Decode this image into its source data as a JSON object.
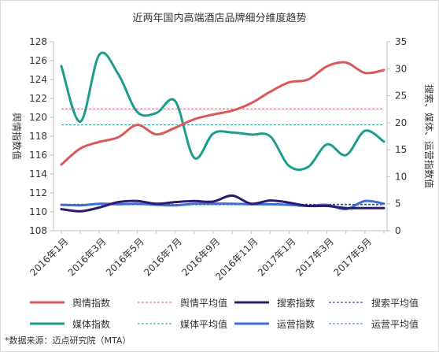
{
  "chart_data": {
    "type": "line",
    "title": "近两年国内高端酒店品牌细分维度趋势",
    "ylabel": "舆情指数值",
    "y2label": "搜索、媒体、运营指数值",
    "ylim": [
      108,
      128
    ],
    "yticks": [
      108,
      110,
      112,
      114,
      116,
      118,
      120,
      122,
      124,
      126,
      128
    ],
    "y2lim": [
      0,
      35
    ],
    "y2ticks": [
      0,
      5,
      10,
      15,
      20,
      25,
      30,
      35
    ],
    "grid": false,
    "legend_position": "bottom",
    "xlabels": [
      "2016年1月",
      "2016年3月",
      "2016年5月",
      "2016年7月",
      "2016年9月",
      "2016年11月",
      "2017年1月",
      "2017年3月",
      "2017年5月"
    ],
    "x": [
      "2016年1月",
      "2016年2月",
      "2016年3月",
      "2016年4月",
      "2016年5月",
      "2016年6月",
      "2016年7月",
      "2016年8月",
      "2016年9月",
      "2016年10月",
      "2016年11月",
      "2016年12月",
      "2017年1月",
      "2017年2月",
      "2017年3月",
      "2017年4月",
      "2017年5月",
      "2017年6月"
    ],
    "series": [
      {
        "name": "舆情指数",
        "axis": "left",
        "style": "solid",
        "color": "#D9595B",
        "values": [
          115.0,
          116.7,
          117.4,
          117.9,
          119.2,
          118.2,
          118.9,
          119.8,
          120.3,
          120.7,
          121.5,
          122.7,
          123.7,
          124.0,
          125.4,
          125.8,
          124.7,
          125.0
        ]
      },
      {
        "name": "舆情平均值",
        "axis": "left",
        "style": "dashed",
        "color": "#D9595B",
        "values": [
          120.9,
          120.9,
          120.9,
          120.9,
          120.9,
          120.9,
          120.9,
          120.9,
          120.9,
          120.9,
          120.9,
          120.9,
          120.9,
          120.9,
          120.9,
          120.9,
          120.9,
          120.9
        ]
      },
      {
        "name": "搜索指数",
        "axis": "right",
        "style": "solid",
        "color": "#2E1A6E",
        "values": [
          4.0,
          3.6,
          4.3,
          5.3,
          5.5,
          5.0,
          5.3,
          5.5,
          5.4,
          6.5,
          5.0,
          5.6,
          5.2,
          4.6,
          4.6,
          4.2,
          4.2,
          4.2
        ]
      },
      {
        "name": "搜索平均值",
        "axis": "right",
        "style": "dashed",
        "color": "#2E1A6E",
        "values": [
          4.9,
          4.9,
          4.9,
          4.9,
          4.9,
          4.9,
          4.9,
          4.9,
          4.9,
          4.9,
          4.9,
          4.9,
          4.9,
          4.9,
          4.9,
          4.9,
          4.9,
          4.9
        ]
      },
      {
        "name": "媒体指数",
        "axis": "right",
        "style": "solid",
        "color": "#1D9C8E",
        "values": [
          30.5,
          20.2,
          32.6,
          29.0,
          22.0,
          21.8,
          24.0,
          13.5,
          18.0,
          18.2,
          17.8,
          17.5,
          12.0,
          11.8,
          16.0,
          14.0,
          18.5,
          16.5
        ]
      },
      {
        "name": "媒体平均值",
        "axis": "right",
        "style": "dashed",
        "color": "#1D9C8E",
        "values": [
          19.6,
          19.6,
          19.6,
          19.6,
          19.6,
          19.6,
          19.6,
          19.6,
          19.6,
          19.6,
          19.6,
          19.6,
          19.6,
          19.6,
          19.6,
          19.6,
          19.6,
          19.6
        ]
      },
      {
        "name": "运营指数",
        "axis": "right",
        "style": "solid",
        "color": "#3C6FD1",
        "values": [
          4.8,
          4.7,
          5.0,
          4.9,
          5.0,
          4.8,
          4.7,
          5.0,
          5.0,
          5.0,
          4.9,
          4.9,
          4.8,
          4.6,
          4.8,
          4.0,
          5.5,
          5.0
        ]
      },
      {
        "name": "运营平均值",
        "axis": "right",
        "style": "dashed",
        "color": "#3C6FD1",
        "values": [
          4.8,
          4.8,
          4.8,
          4.8,
          4.8,
          4.8,
          4.8,
          4.8,
          4.8,
          4.8,
          4.8,
          4.8,
          4.8,
          4.8,
          4.8,
          4.8,
          4.8,
          4.8
        ]
      }
    ]
  },
  "footnote": "*数据来源：迈点研究院（MTA）"
}
